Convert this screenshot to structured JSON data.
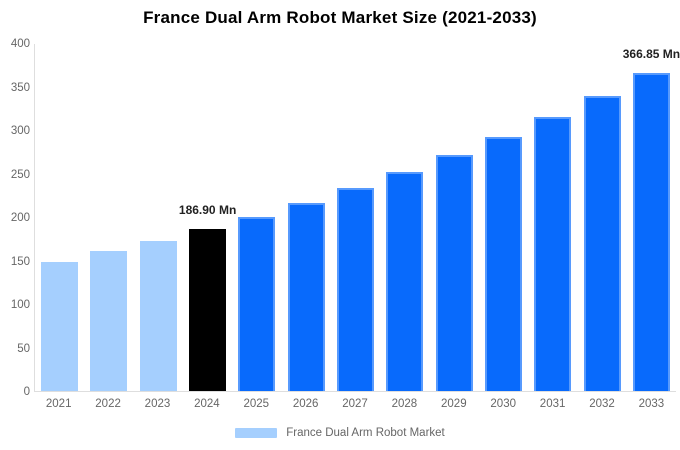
{
  "title": "France Dual Arm Robot Market Size (2021-2033)",
  "legend": {
    "label": "France Dual Arm Robot Market"
  },
  "colors": {
    "light_blue": "#A5CFFE",
    "blue": "#086AFC",
    "black": "#000000",
    "axis_line": "#DEDEDE",
    "tick_text": "#666666",
    "annotation_text": "#222222",
    "legend_text": "#666666",
    "title_text": "#000000"
  },
  "chart_data": {
    "type": "bar",
    "title": "France Dual Arm Robot Market Size (2021-2033)",
    "categories": [
      "2021",
      "2022",
      "2023",
      "2024",
      "2025",
      "2026",
      "2027",
      "2028",
      "2029",
      "2030",
      "2031",
      "2032",
      "2033"
    ],
    "values": [
      149,
      161,
      173,
      186.9,
      201,
      217,
      234,
      252,
      272,
      293,
      316,
      340,
      366.85
    ],
    "bar_colors": [
      "light_blue",
      "light_blue",
      "light_blue",
      "black",
      "blue",
      "blue",
      "blue",
      "blue",
      "blue",
      "blue",
      "blue",
      "blue",
      "blue"
    ],
    "annotations": [
      {
        "index": 3,
        "text": "186.90 Mn"
      },
      {
        "index": 12,
        "text": "366.85 Mn"
      }
    ],
    "unit": "Mn",
    "xlabel": "",
    "ylabel": "",
    "ylim": [
      0,
      400
    ],
    "yticks": [
      0,
      50,
      100,
      150,
      200,
      250,
      300,
      350,
      400
    ],
    "grid": false,
    "legend_position": "bottom",
    "legend_entries": [
      "France Dual Arm Robot Market"
    ]
  }
}
